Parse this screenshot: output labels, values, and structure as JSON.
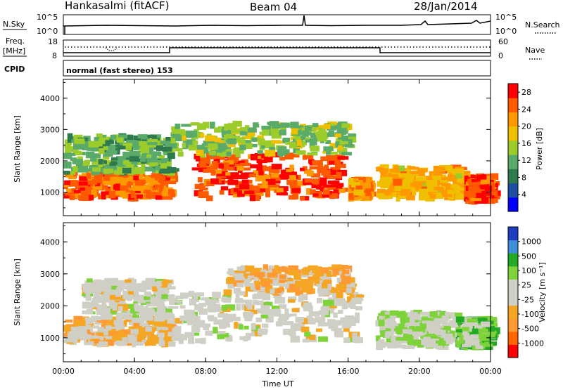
{
  "header": {
    "station": "Hankasalmi (fitACF)",
    "beam": "Beam 04",
    "date": "28/Jan/2014"
  },
  "strip": {
    "nsky_label": "N.Sky",
    "nsky_ticks": [
      "10^5",
      "10^0"
    ],
    "nsearch_label": "N.Search",
    "nsearch_ticks": [
      "10^5",
      "10^0"
    ],
    "freq_label_1": "Freq.",
    "freq_label_2": "[MHz]",
    "freq_ticks": [
      "18",
      "8"
    ],
    "nave_label": "Nave",
    "nave_ticks": [
      "60",
      "0"
    ],
    "cpid_label": "CPID",
    "cpid_text": "normal (fast stereo) 153"
  },
  "colors": {
    "power_scale": [
      "#0000ff",
      "#1f4fa0",
      "#2e7a4e",
      "#5aab6a",
      "#9ccb2c",
      "#f0c000",
      "#ff9900",
      "#ff5a00",
      "#ff0000"
    ],
    "velocity_scale": [
      "#ff0000",
      "#ff6600",
      "#ff9933",
      "#f5a623",
      "#cfcfc6",
      "#cfcfc6",
      "#7fd33a",
      "#22aa22",
      "#3f8fd6",
      "#1d3fbf"
    ]
  },
  "chart_data": [
    {
      "type": "heatmap",
      "panel": "power",
      "ylabel": "Slant Range [km]",
      "yticks": [
        "1000",
        "2000",
        "3000",
        "4000"
      ],
      "ylim": [
        250,
        4600
      ],
      "xticks": [
        "00:00",
        "04:00",
        "08:00",
        "12:00",
        "16:00",
        "20:00",
        "00:00"
      ],
      "xlim": [
        0,
        24
      ],
      "colorbar": {
        "label": "Power [dB]",
        "ticks": [
          "4",
          "8",
          "12",
          "16",
          "20",
          "24",
          "28"
        ],
        "range": [
          0,
          30
        ]
      },
      "regions": [
        {
          "t": [
            0.0,
            6.0
          ],
          "range_km": [
            800,
            1600
          ],
          "value_db": 24
        },
        {
          "t": [
            0.0,
            6.0
          ],
          "range_km": [
            1600,
            2800
          ],
          "value_db": 12
        },
        {
          "t": [
            7.2,
            15.5
          ],
          "range_km": [
            800,
            2200
          ],
          "value_db": 26
        },
        {
          "t": [
            6.0,
            16.0
          ],
          "range_km": [
            2200,
            3200
          ],
          "value_db": 14
        },
        {
          "t": [
            16.0,
            17.0
          ],
          "range_km": [
            800,
            1400
          ],
          "value_db": 22
        },
        {
          "t": [
            17.5,
            22.5
          ],
          "range_km": [
            800,
            1800
          ],
          "value_db": 20
        },
        {
          "t": [
            22.5,
            24.0
          ],
          "range_km": [
            700,
            1500
          ],
          "value_db": 26
        }
      ]
    },
    {
      "type": "heatmap",
      "panel": "velocity",
      "ylabel": "Slant Range [km]",
      "yticks": [
        "1000",
        "2000",
        "3000",
        "4000"
      ],
      "ylim": [
        250,
        4600
      ],
      "xticks": [
        "00:00",
        "04:00",
        "08:00",
        "12:00",
        "16:00",
        "20:00",
        "00:00"
      ],
      "xlim": [
        0,
        24
      ],
      "xlabel": "Time UT",
      "colorbar": {
        "label": "Velocity [m s⁻¹]",
        "ticks": [
          "1000",
          "500",
          "100",
          "25",
          "-25",
          "-100",
          "-500",
          "-1000"
        ],
        "range": [
          -1250,
          1250
        ]
      },
      "regions": [
        {
          "t": [
            0.0,
            6.0
          ],
          "range_km": [
            800,
            1600
          ],
          "value_ms": -300
        },
        {
          "t": [
            1.0,
            6.0
          ],
          "range_km": [
            1600,
            2800
          ],
          "value_ms": 0
        },
        {
          "t": [
            6.0,
            16.5
          ],
          "range_km": [
            900,
            2400
          ],
          "value_ms": 0
        },
        {
          "t": [
            9.0,
            16.0
          ],
          "range_km": [
            2400,
            3200
          ],
          "value_ms": -300
        },
        {
          "t": [
            17.5,
            22.0
          ],
          "range_km": [
            700,
            1800
          ],
          "value_ms": 150
        },
        {
          "t": [
            22.0,
            24.0
          ],
          "range_km": [
            700,
            1600
          ],
          "value_ms": 400
        }
      ]
    }
  ]
}
